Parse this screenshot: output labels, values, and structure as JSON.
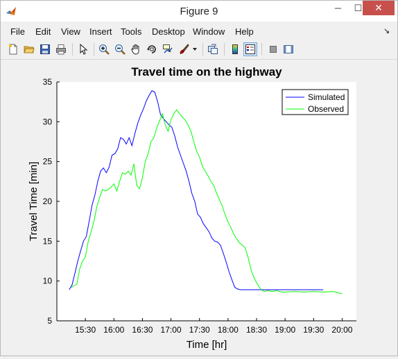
{
  "window": {
    "title": "Figure 9",
    "min_label": "─",
    "max_label": "☐",
    "close_label": "✕"
  },
  "menu": {
    "items": [
      "File",
      "Edit",
      "View",
      "Insert",
      "Tools",
      "Desktop",
      "Window",
      "Help"
    ],
    "dock_arrow": "↘"
  },
  "toolbar": {
    "icons": [
      "new-figure-icon",
      "open-file-icon",
      "save-icon",
      "print-icon",
      "pointer-icon",
      "zoom-in-icon",
      "zoom-out-icon",
      "pan-icon",
      "rotate-3d-icon",
      "data-cursor-icon",
      "brush-icon",
      "brush-dropdown-icon",
      "link-plot-icon",
      "colorbar-icon",
      "legend-icon",
      "hide-plot-tools-icon",
      "show-plot-tools-icon"
    ]
  },
  "chart_data": {
    "type": "line",
    "title": "Travel time on the highway",
    "xlabel": "Time [hr]",
    "ylabel": "Travel Time [min]",
    "xlim": [
      "15:00",
      "20:15"
    ],
    "ylim": [
      5,
      35
    ],
    "xticks": [
      "15:30",
      "16:00",
      "16:30",
      "17:00",
      "17:30",
      "18:00",
      "18:30",
      "19:00",
      "19:30",
      "20:00"
    ],
    "yticks": [
      5,
      10,
      15,
      20,
      25,
      30,
      35
    ],
    "grid": false,
    "legend_position": "top-right",
    "series": [
      {
        "name": "Simulated",
        "color": "#0000ff",
        "x": [
          "15:13",
          "15:16",
          "15:19",
          "15:22",
          "15:25",
          "15:28",
          "15:31",
          "15:34",
          "15:37",
          "15:40",
          "15:43",
          "15:46",
          "15:49",
          "15:52",
          "15:55",
          "15:58",
          "16:01",
          "16:04",
          "16:07",
          "16:10",
          "16:13",
          "16:16",
          "16:19",
          "16:22",
          "16:25",
          "16:28",
          "16:31",
          "16:34",
          "16:37",
          "16:40",
          "16:43",
          "16:46",
          "16:49",
          "16:52",
          "16:55",
          "16:58",
          "17:01",
          "17:04",
          "17:07",
          "17:10",
          "17:13",
          "17:16",
          "17:19",
          "17:22",
          "17:25",
          "17:28",
          "17:31",
          "17:34",
          "17:37",
          "17:40",
          "17:43",
          "17:46",
          "17:49",
          "17:52",
          "17:55",
          "17:58",
          "18:01",
          "18:04",
          "18:07",
          "18:10",
          "18:13",
          "18:16",
          "18:19",
          "18:22",
          "18:25",
          "18:28",
          "18:31",
          "18:34",
          "18:37",
          "18:40",
          "18:43",
          "18:46",
          "18:49",
          "18:52",
          "18:55",
          "19:00",
          "19:10",
          "19:20",
          "19:30",
          "19:40"
        ],
        "y": [
          8.9,
          9.5,
          11.0,
          12.5,
          13.8,
          15.0,
          15.6,
          17.5,
          19.5,
          20.8,
          22.5,
          23.8,
          24.2,
          23.6,
          24.3,
          25.8,
          26.0,
          26.6,
          28.0,
          27.8,
          27.2,
          28.0,
          27.0,
          28.5,
          29.8,
          30.8,
          31.6,
          32.6,
          33.3,
          33.9,
          33.7,
          32.5,
          30.9,
          30.4,
          30.0,
          29.6,
          29.3,
          28.2,
          26.8,
          25.8,
          24.8,
          23.8,
          22.5,
          21.0,
          20.0,
          18.4,
          18.0,
          17.2,
          16.7,
          16.2,
          15.4,
          15.0,
          14.9,
          14.5,
          13.5,
          12.4,
          11.2,
          10.2,
          9.2,
          9.0,
          8.9,
          8.9,
          8.9,
          8.9,
          8.9,
          8.9,
          8.9,
          8.9,
          8.9,
          8.9,
          8.9,
          8.9,
          8.9,
          8.9,
          8.9,
          8.9,
          8.9,
          8.9,
          8.9,
          8.9
        ]
      },
      {
        "name": "Observed",
        "color": "#00ff00",
        "x": [
          "15:15",
          "15:18",
          "15:21",
          "15:24",
          "15:27",
          "15:30",
          "15:33",
          "15:36",
          "15:39",
          "15:42",
          "15:45",
          "15:48",
          "15:51",
          "15:54",
          "15:57",
          "16:00",
          "16:03",
          "16:06",
          "16:09",
          "16:12",
          "16:15",
          "16:18",
          "16:21",
          "16:24",
          "16:27",
          "16:30",
          "16:33",
          "16:36",
          "16:39",
          "16:42",
          "16:45",
          "16:48",
          "16:51",
          "16:54",
          "16:57",
          "17:00",
          "17:03",
          "17:06",
          "17:09",
          "17:12",
          "17:15",
          "17:18",
          "17:21",
          "17:24",
          "17:27",
          "17:30",
          "17:33",
          "17:36",
          "17:39",
          "17:42",
          "17:45",
          "17:48",
          "17:51",
          "17:54",
          "17:57",
          "18:00",
          "18:03",
          "18:06",
          "18:09",
          "18:12",
          "18:15",
          "18:18",
          "18:21",
          "18:24",
          "18:27",
          "18:30",
          "18:33",
          "18:36",
          "18:39",
          "18:42",
          "18:45",
          "18:48",
          "18:51",
          "18:54",
          "18:57",
          "19:00",
          "19:10",
          "19:20",
          "19:30",
          "19:40",
          "19:50",
          "20:00"
        ],
        "y": [
          9.2,
          9.4,
          9.6,
          11.5,
          12.5,
          13.0,
          15.0,
          16.2,
          17.5,
          19.3,
          20.5,
          21.5,
          21.3,
          21.5,
          21.8,
          22.2,
          21.3,
          22.5,
          23.6,
          23.4,
          23.8,
          23.3,
          24.7,
          22.0,
          21.6,
          23.0,
          25.0,
          26.0,
          27.5,
          28.0,
          29.2,
          30.1,
          31.0,
          29.6,
          28.8,
          30.3,
          31.0,
          31.5,
          31.0,
          30.6,
          30.2,
          29.6,
          28.8,
          27.5,
          26.3,
          25.6,
          24.4,
          23.8,
          23.2,
          22.5,
          22.0,
          21.0,
          20.2,
          19.4,
          18.3,
          17.4,
          16.7,
          15.9,
          15.3,
          14.8,
          14.5,
          14.2,
          13.0,
          11.5,
          10.5,
          9.8,
          9.2,
          8.8,
          8.7,
          8.8,
          8.7,
          8.7,
          8.8,
          8.7,
          8.6,
          8.6,
          8.7,
          8.6,
          8.7,
          8.6,
          8.7,
          8.4
        ]
      }
    ]
  }
}
